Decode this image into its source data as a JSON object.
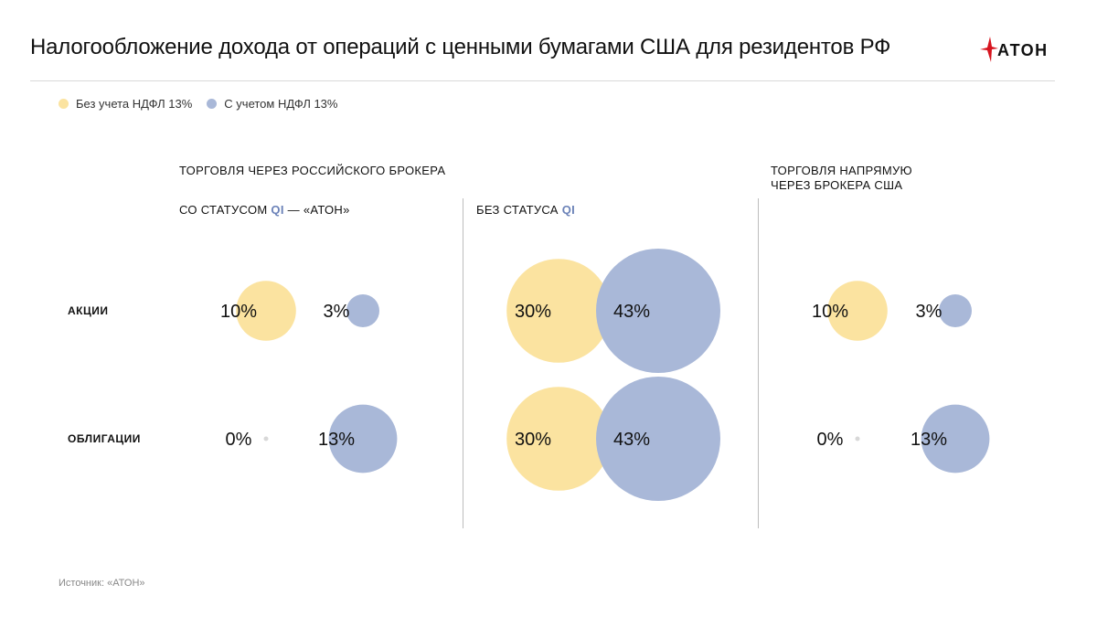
{
  "header": {
    "title": "Налогообложение дохода от операций с ценными бумагами США для резидентов РФ",
    "logo_text": "АТОН"
  },
  "legend": [
    {
      "label": "Без учета НДФЛ 13%",
      "color": "#fbe3a0"
    },
    {
      "label": "С учетом НДФЛ 13%",
      "color": "#a9b8d8"
    }
  ],
  "groups": {
    "russian_broker": "ТОРГОВЛЯ ЧЕРЕЗ РОССИЙСКОГО БРОКЕРА",
    "direct_line1": "ТОРГОВЛЯ НАПРЯМУЮ",
    "direct_line2": "ЧЕРЕЗ БРОКЕРА США"
  },
  "subheaders": {
    "with_qi_prefix": "СО СТАТУСОМ ",
    "with_qi_qi": "QI",
    "with_qi_suffix": " — «АТОН»",
    "without_qi_prefix": "БЕЗ СТАТУСА ",
    "without_qi_qi": "QI"
  },
  "rows": {
    "stocks": "АКЦИИ",
    "bonds": "ОБЛИГАЦИИ"
  },
  "source": "Источник: «АТОН»",
  "chart_data": {
    "type": "bubble",
    "series": [
      {
        "name": "Без учета НДФЛ 13%",
        "color": "#fbe3a0"
      },
      {
        "name": "С учетом НДФЛ 13%",
        "color": "#a9b8d8"
      }
    ],
    "columns": [
      "СО СТАТУСОМ QI — «АТОН»",
      "БЕЗ СТАТУСА QI",
      "ТОРГОВЛЯ НАПРЯМУЮ ЧЕРЕЗ БРОКЕРА США"
    ],
    "rows": [
      "АКЦИИ",
      "ОБЛИГАЦИИ"
    ],
    "values": [
      {
        "column": 0,
        "row": 0,
        "series": 0,
        "value": 10,
        "label": "10%"
      },
      {
        "column": 0,
        "row": 0,
        "series": 1,
        "value": 3,
        "label": "3%"
      },
      {
        "column": 0,
        "row": 1,
        "series": 0,
        "value": 0,
        "label": "0%"
      },
      {
        "column": 0,
        "row": 1,
        "series": 1,
        "value": 13,
        "label": "13%"
      },
      {
        "column": 1,
        "row": 0,
        "series": 0,
        "value": 30,
        "label": "30%"
      },
      {
        "column": 1,
        "row": 0,
        "series": 1,
        "value": 43,
        "label": "43%"
      },
      {
        "column": 1,
        "row": 1,
        "series": 0,
        "value": 30,
        "label": "30%"
      },
      {
        "column": 1,
        "row": 1,
        "series": 1,
        "value": 43,
        "label": "43%"
      },
      {
        "column": 2,
        "row": 0,
        "series": 0,
        "value": 10,
        "label": "10%"
      },
      {
        "column": 2,
        "row": 0,
        "series": 1,
        "value": 3,
        "label": "3%"
      },
      {
        "column": 2,
        "row": 1,
        "series": 0,
        "value": 0,
        "label": "0%"
      },
      {
        "column": 2,
        "row": 1,
        "series": 1,
        "value": 13,
        "label": "13%"
      }
    ]
  }
}
